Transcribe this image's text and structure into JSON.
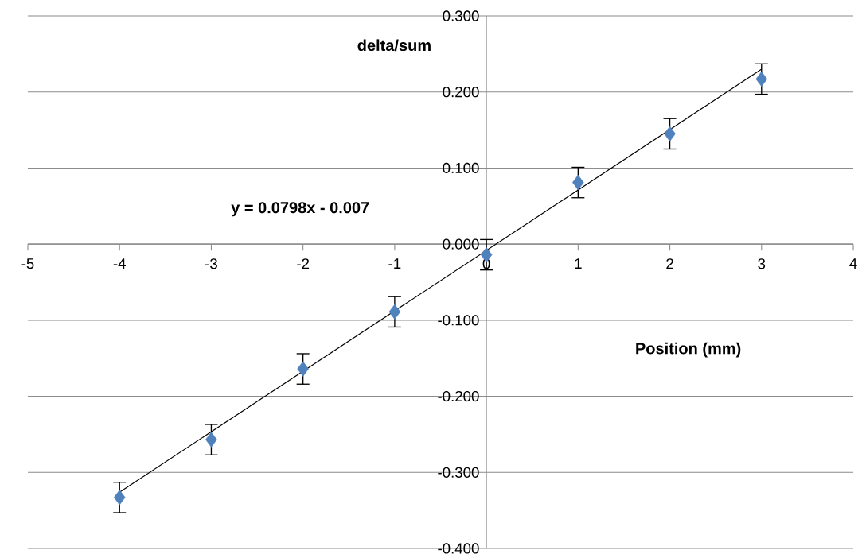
{
  "chart_data": {
    "type": "scatter",
    "xlabel": "Position (mm)",
    "ylabel": "delta/sum",
    "annotations": [
      "y = 0.0798x - 0.007"
    ],
    "xlim": [
      -5,
      4
    ],
    "xticks": [
      -5,
      -4,
      -3,
      -2,
      -1,
      0,
      1,
      2,
      3,
      4
    ],
    "ylim": [
      -0.4,
      0.3
    ],
    "yticks": [
      {
        "value": -0.4,
        "label": "-0.400"
      },
      {
        "value": -0.3,
        "label": "-0.300"
      },
      {
        "value": -0.2,
        "label": "-0.200"
      },
      {
        "value": -0.1,
        "label": "-0.100"
      },
      {
        "value": 0,
        "label": "0.000"
      },
      {
        "value": 0.1,
        "label": "0.100"
      },
      {
        "value": 0.2,
        "label": "0.200"
      },
      {
        "value": 0.3,
        "label": "0.300"
      }
    ],
    "grid": "y",
    "series": [
      {
        "color": "#4f81bd",
        "marker": "diamond",
        "x": [
          -4,
          -3,
          -2,
          -1,
          0,
          1,
          2,
          3
        ],
        "values": [
          -0.333,
          -0.257,
          -0.164,
          -0.089,
          -0.014,
          0.081,
          0.145,
          0.217
        ],
        "errors": [
          0.02,
          0.02,
          0.02,
          0.02,
          0.02,
          0.02,
          0.02,
          0.02
        ]
      },
      {
        "type": "line",
        "color": "#000000",
        "marker": "none",
        "line_style": "solid",
        "x": [
          -4,
          3
        ],
        "values": [
          -0.326,
          0.23
        ]
      }
    ]
  }
}
